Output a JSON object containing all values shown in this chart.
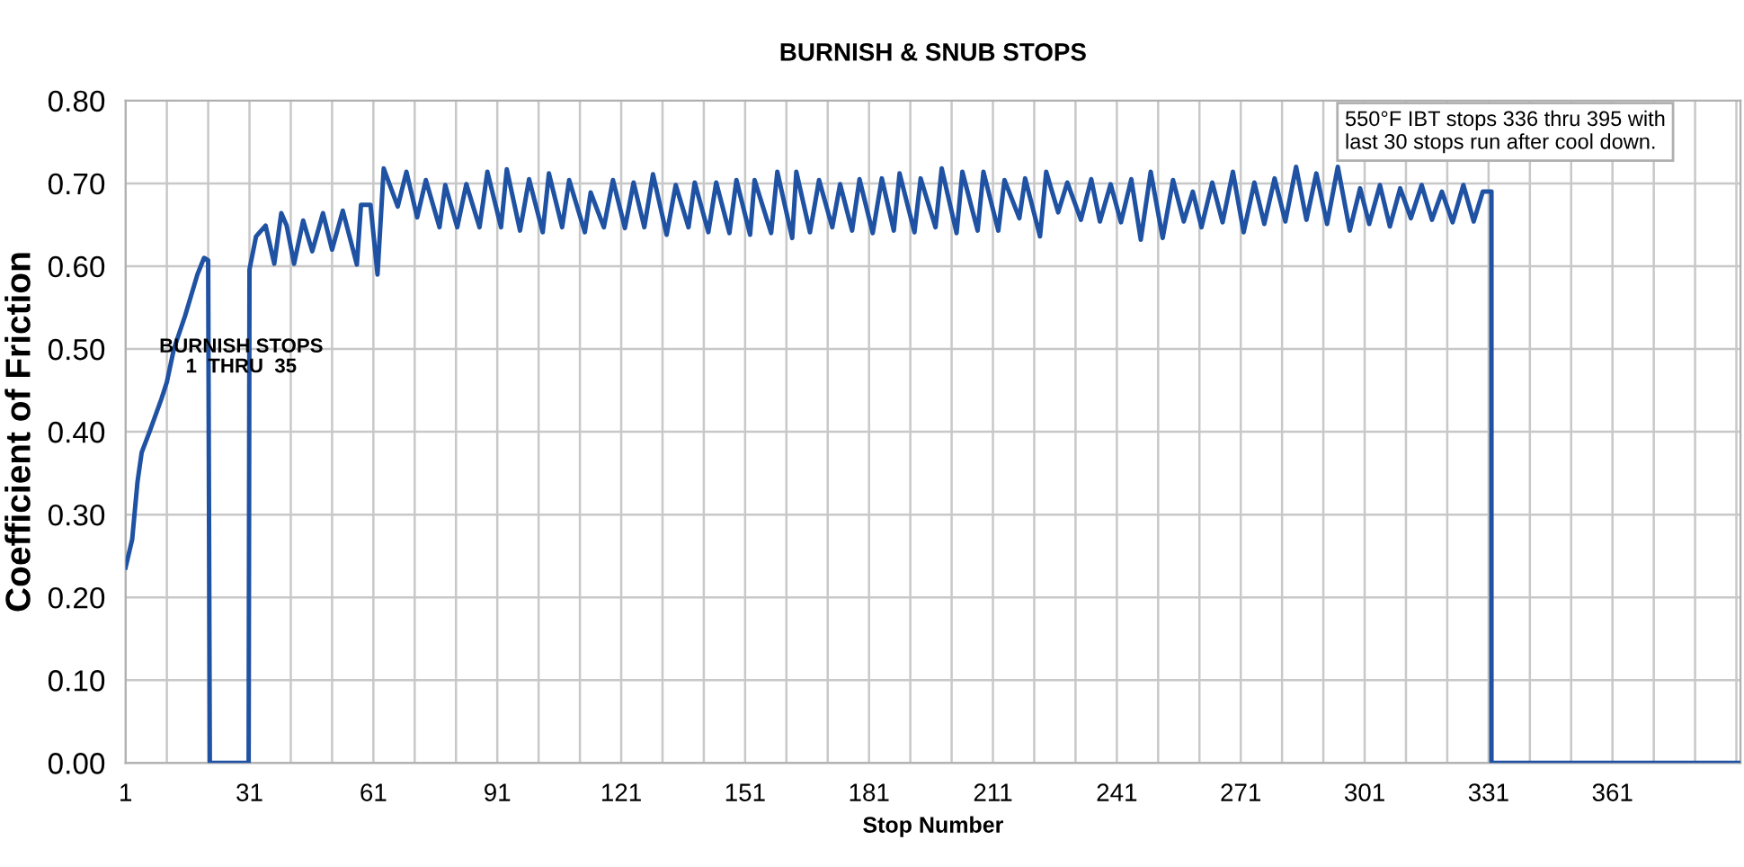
{
  "chart_data": {
    "type": "line",
    "title": "BURNISH & SNUB STOPS",
    "xlabel": "Stop Number",
    "ylabel": "Coefficient of Friction",
    "xlim": [
      1,
      392
    ],
    "ylim": [
      0,
      0.8
    ],
    "xticks": [
      1,
      {
        "value": 11,
        "label": null
      },
      {
        "value": 21,
        "label": null
      },
      31,
      {
        "value": 41,
        "label": null
      },
      {
        "value": 51,
        "label": null
      },
      61,
      {
        "value": 71,
        "label": null
      },
      {
        "value": 81,
        "label": null
      },
      91,
      {
        "value": 101,
        "label": null
      },
      {
        "value": 111,
        "label": null
      },
      121,
      {
        "value": 131,
        "label": null
      },
      {
        "value": 141,
        "label": null
      },
      151,
      {
        "value": 161,
        "label": null
      },
      {
        "value": 171,
        "label": null
      },
      181,
      {
        "value": 191,
        "label": null
      },
      {
        "value": 201,
        "label": null
      },
      211,
      {
        "value": 221,
        "label": null
      },
      {
        "value": 231,
        "label": null
      },
      241,
      {
        "value": 251,
        "label": null
      },
      {
        "value": 261,
        "label": null
      },
      271,
      {
        "value": 281,
        "label": null
      },
      {
        "value": 291,
        "label": null
      },
      301,
      {
        "value": 311,
        "label": null
      },
      {
        "value": 321,
        "label": null
      },
      331,
      {
        "value": 341,
        "label": null
      },
      {
        "value": 351,
        "label": null
      },
      361,
      {
        "value": 371,
        "label": null
      },
      {
        "value": 381,
        "label": null
      },
      {
        "value": 391,
        "label": null
      }
    ],
    "yticks": [
      {
        "value": 0,
        "label": "0.00"
      },
      {
        "value": 0.1,
        "label": "0.10"
      },
      {
        "value": 0.2,
        "label": "0.20"
      },
      {
        "value": 0.3,
        "label": "0.30"
      },
      {
        "value": 0.4,
        "label": "0.40"
      },
      {
        "value": 0.5,
        "label": "0.50"
      },
      {
        "value": 0.6,
        "label": "0.60"
      },
      {
        "value": 0.7,
        "label": "0.70"
      },
      {
        "value": 0.8,
        "label": "0.80"
      }
    ],
    "grid": true,
    "series": [
      {
        "color": "#1f52a3",
        "x": [
          1,
          2.6,
          3.9,
          4.9,
          6.8,
          9.7,
          11,
          12.7,
          15.4,
          18.4,
          20,
          21,
          21.4,
          30.8,
          31,
          32.6,
          34.9,
          37,
          38.7,
          40,
          41.8,
          44,
          46.2,
          48.8,
          51,
          53.6,
          57,
          58,
          60.3,
          62,
          63.5,
          66.9,
          69.0,
          71.6,
          73.7,
          77.0,
          78.4,
          81.3,
          83.5,
          86.7,
          88.6,
          91.9,
          93.3,
          96.5,
          98.7,
          102.0,
          103.5,
          106.7,
          108.4,
          112.2,
          113.6,
          116.8,
          119.0,
          121.9,
          124.0,
          126.6,
          128.7,
          132.0,
          134.2,
          137.3,
          138.8,
          142.1,
          144.0,
          147.2,
          148.9,
          152.2,
          153.3,
          157.3,
          158.8,
          162.4,
          163.4,
          166.7,
          168.9,
          172.1,
          174.0,
          176.9,
          178.7,
          181.9,
          184.1,
          187.0,
          188.4,
          192.0,
          193.5,
          197.1,
          198.6,
          202.2,
          203.6,
          207.3,
          208.7,
          212.3,
          213.8,
          217.4,
          218.8,
          222.4,
          223.9,
          226.8,
          229.0,
          232.3,
          234.8,
          236.9,
          239.5,
          242.0,
          244.5,
          246.8,
          249.2,
          252.1,
          254.6,
          257.2,
          259.4,
          261.5,
          264.1,
          266.6,
          269.1,
          271.7,
          274.3,
          276.7,
          279.2,
          281.8,
          284.4,
          286.9,
          289.3,
          291.9,
          294.5,
          297.4,
          299.9,
          302.1,
          304.7,
          307.1,
          309.6,
          312.2,
          314.8,
          317.3,
          319.7,
          322.3,
          324.9,
          327.4,
          329.6,
          331.7,
          331.7,
          392
        ],
        "values": [
          0.236,
          0.27,
          0.34,
          0.375,
          0.4,
          0.44,
          0.46,
          0.5,
          0.54,
          0.59,
          0.61,
          0.607,
          0,
          0,
          0.596,
          0.636,
          0.649,
          0.603,
          0.664,
          0.649,
          0.603,
          0.655,
          0.618,
          0.664,
          0.62,
          0.667,
          0.602,
          0.674,
          0.674,
          0.59,
          0.718,
          0.672,
          0.714,
          0.659,
          0.704,
          0.647,
          0.698,
          0.647,
          0.699,
          0.647,
          0.714,
          0.647,
          0.717,
          0.643,
          0.705,
          0.641,
          0.712,
          0.647,
          0.704,
          0.641,
          0.689,
          0.647,
          0.704,
          0.646,
          0.701,
          0.647,
          0.711,
          0.638,
          0.698,
          0.647,
          0.701,
          0.641,
          0.701,
          0.64,
          0.704,
          0.638,
          0.704,
          0.64,
          0.714,
          0.634,
          0.714,
          0.641,
          0.704,
          0.647,
          0.699,
          0.643,
          0.705,
          0.64,
          0.706,
          0.643,
          0.712,
          0.641,
          0.706,
          0.647,
          0.718,
          0.64,
          0.714,
          0.643,
          0.714,
          0.643,
          0.704,
          0.658,
          0.706,
          0.636,
          0.714,
          0.665,
          0.701,
          0.656,
          0.705,
          0.654,
          0.699,
          0.653,
          0.705,
          0.632,
          0.714,
          0.634,
          0.704,
          0.654,
          0.69,
          0.647,
          0.701,
          0.653,
          0.714,
          0.641,
          0.701,
          0.651,
          0.706,
          0.654,
          0.72,
          0.656,
          0.712,
          0.651,
          0.72,
          0.643,
          0.694,
          0.651,
          0.698,
          0.648,
          0.694,
          0.658,
          0.698,
          0.656,
          0.69,
          0.653,
          0.698,
          0.654,
          0.69,
          0.69,
          0,
          0
        ]
      }
    ],
    "annotations": [
      {
        "text": "BURNISH STOPS\n1  THRU  35",
        "x": 29,
        "y": 0.49
      },
      "550°F IBT stops 336 thru 395 with\nlast 30 stops run after cool down."
    ]
  }
}
